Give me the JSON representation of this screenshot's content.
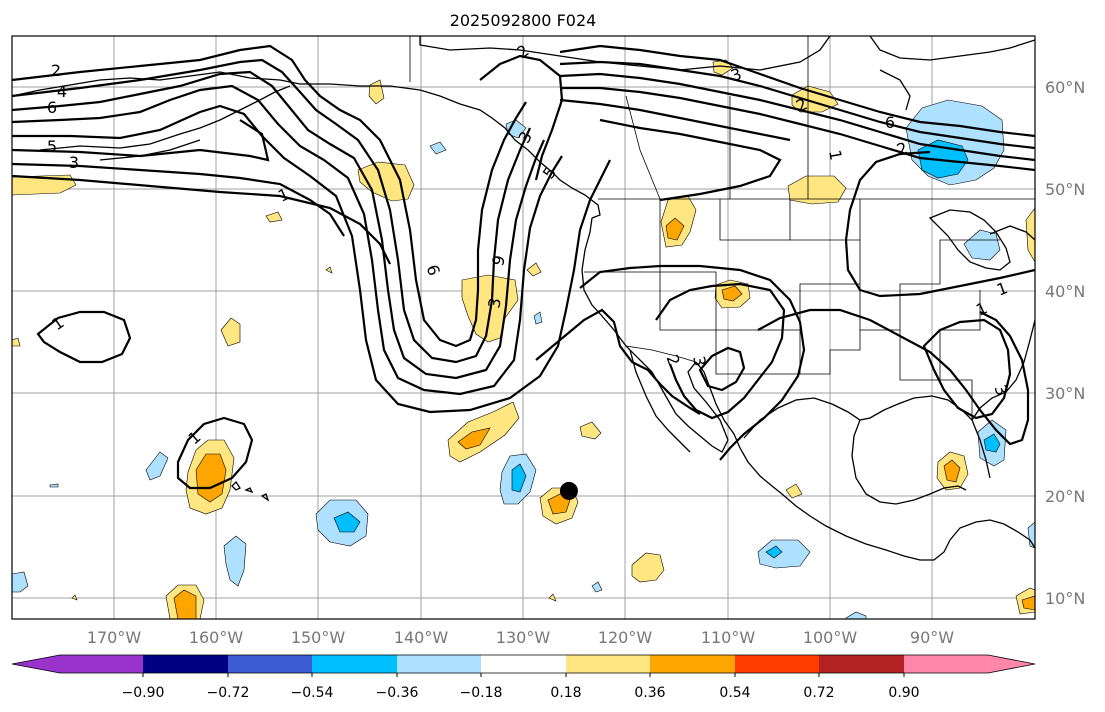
{
  "title": "2025092800 F024",
  "lon_labels": [
    "170°W",
    "160°W",
    "150°W",
    "140°W",
    "130°W",
    "120°W",
    "110°W",
    "100°W",
    "90°W"
  ],
  "lat_labels": [
    "60°N",
    "50°N",
    "40°N",
    "30°N",
    "20°N",
    "10°N"
  ],
  "colorbar": {
    "tick_labels": [
      "−0.90",
      "−0.72",
      "−0.54",
      "−0.36",
      "−0.18",
      "0.18",
      "0.36",
      "0.54",
      "0.72",
      "0.90"
    ],
    "colors": [
      "#9933cc",
      "#000080",
      "#3a5bd1",
      "#00bfff",
      "#aee0ff",
      "#ffffff",
      "#ffe680",
      "#ffa500",
      "#ff3c00",
      "#b22222",
      "#ff88aa"
    ]
  },
  "contour_labels": [
    "2",
    "4",
    "6",
    "5",
    "3",
    "1",
    "6",
    "3",
    "1",
    "9",
    "5",
    "3",
    "1",
    "2",
    "2",
    "3",
    "6",
    "2",
    "1",
    "2",
    "3",
    "1",
    "3",
    "1"
  ],
  "marker": {
    "name": "black-dot",
    "lon": -125.5,
    "lat": 20.5
  }
}
